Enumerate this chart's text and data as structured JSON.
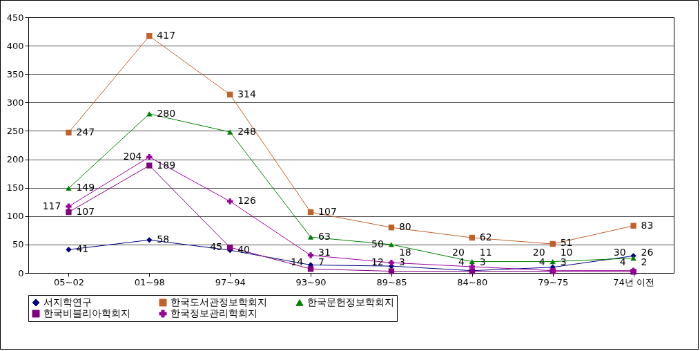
{
  "chart_data": {
    "type": "line",
    "categories": [
      "05~02",
      "01~98",
      "97~94",
      "93~90",
      "89~85",
      "84~80",
      "79~75",
      "74년 이전"
    ],
    "series": [
      {
        "name": "서지학연구",
        "color": "#000080",
        "marker": "diamond",
        "values": [
          41,
          58,
          40,
          14,
          12,
          4,
          10,
          30
        ]
      },
      {
        "name": "한국도서관정보학회지",
        "color": "#c0602a",
        "marker": "square",
        "values": [
          247,
          417,
          314,
          107,
          80,
          62,
          51,
          83
        ]
      },
      {
        "name": "한국문헌정보학회지",
        "color": "#008000",
        "marker": "triangle",
        "values": [
          149,
          280,
          248,
          63,
          50,
          20,
          20,
          26
        ]
      },
      {
        "name": "한국비블리아학회지",
        "color": "#800080",
        "marker": "square",
        "values": [
          107,
          189,
          45,
          7,
          3,
          3,
          3,
          2
        ]
      },
      {
        "name": "한국정보관리학회지",
        "color": "#990099",
        "marker": "cross",
        "values": [
          117,
          204,
          126,
          31,
          18,
          11,
          4,
          4
        ]
      }
    ],
    "ylim": [
      0,
      450
    ],
    "yticks": [
      0,
      50,
      100,
      150,
      200,
      250,
      300,
      350,
      400,
      450
    ],
    "grid": "y",
    "legend": "bottom",
    "data_labels": true
  }
}
